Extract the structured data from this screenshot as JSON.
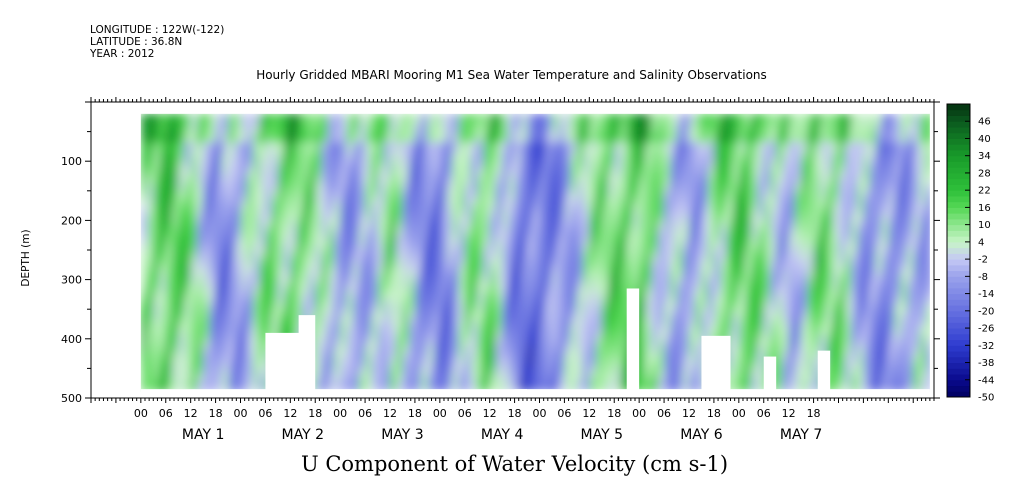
{
  "header": {
    "longitude": "LONGITUDE : 122W(-122)",
    "latitude": "LATITUDE : 36.8N",
    "year": "YEAR : 2012",
    "dataset_title": "Hourly Gridded MBARI Mooring M1 Sea Water Temperature and Salinity Observations"
  },
  "colors": {
    "strong_negative": "#0a0a8c",
    "weak_negative": "#b8bdf0",
    "near_zero": "#c8f0c8",
    "weak_positive": "#66e066",
    "strong_positive": "#0b5a1e",
    "no_data": "#ffffff"
  },
  "chart_data": {
    "type": "heatmap",
    "title": "U Component of Water Velocity (cm s-1)",
    "ylabel": "DEPTH (m)",
    "y_ticks": [
      "100",
      "200",
      "300",
      "400",
      "500"
    ],
    "y_range": [
      500,
      0
    ],
    "x_tick_labels": [
      "00",
      "06",
      "12",
      "18",
      "00",
      "06",
      "12",
      "18",
      "00",
      "06",
      "12",
      "18",
      "00",
      "06",
      "12",
      "18",
      "00",
      "06",
      "12",
      "18",
      "00",
      "06",
      "12",
      "18",
      "00",
      "06",
      "12",
      "18"
    ],
    "x_day_labels": [
      "MAY  1",
      "MAY  2",
      "MAY  3",
      "MAY  4",
      "MAY  5",
      "MAY  6",
      "MAY  7"
    ],
    "colorbar_levels": [
      "46",
      "40",
      "34",
      "28",
      "22",
      "16",
      "10",
      "4",
      "-2",
      "-8",
      "-14",
      "-20",
      "-26",
      "-32",
      "-38",
      "-44",
      "-50"
    ],
    "colorbar_range": [
      -50,
      52
    ],
    "grid": false,
    "legend_position": "right",
    "depth_range_observed": [
      20,
      485
    ],
    "time_range_hours": [
      0,
      190
    ],
    "velocity_pattern_approx": {
      "hours": [
        0,
        6,
        12,
        18,
        24,
        30,
        36,
        42,
        48,
        54,
        60,
        66,
        72,
        78,
        84,
        90,
        96,
        102,
        108,
        114,
        120,
        126,
        132,
        138,
        144,
        150,
        156,
        162,
        168,
        174,
        180,
        186
      ],
      "depth_avg_u": [
        12,
        18,
        8,
        -14,
        -6,
        10,
        14,
        4,
        -10,
        -4,
        8,
        -12,
        -16,
        6,
        10,
        -18,
        -20,
        -8,
        6,
        14,
        18,
        -4,
        -10,
        10,
        16,
        6,
        -6,
        12,
        8,
        -10,
        -14,
        -4
      ]
    }
  }
}
